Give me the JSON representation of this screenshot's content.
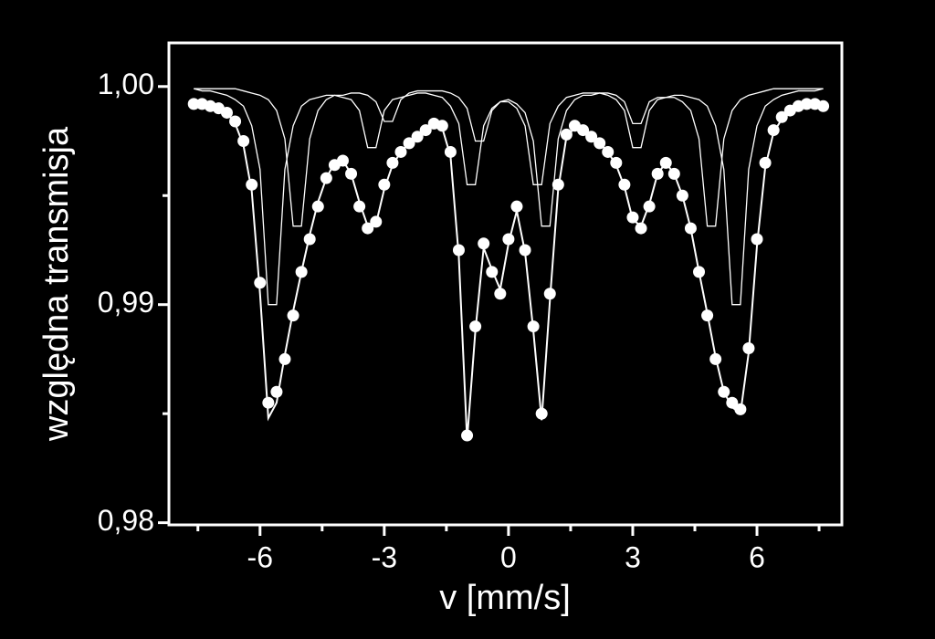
{
  "chart_data": {
    "type": "scatter",
    "xlabel": "v [mm/s]",
    "ylabel": "względna transmisja",
    "xlim": [
      -8.2,
      8.05
    ],
    "ylim": [
      0.9799,
      1.002
    ],
    "xticks": [
      -6,
      -3,
      0,
      3,
      6
    ],
    "xticks_minor": [
      -7.5,
      -4.5,
      -1.5,
      1.5,
      4.5,
      7.5
    ],
    "yticks": [
      {
        "value": 0.98,
        "label": "0,98"
      },
      {
        "value": 0.99,
        "label": "0,99"
      },
      {
        "value": 1.0,
        "label": "1,00"
      }
    ],
    "yticks_minor": [
      0.985,
      0.995
    ],
    "background": "#000000",
    "x": [
      -7.6,
      -7.4,
      -7.2,
      -7.0,
      -6.8,
      -6.6,
      -6.4,
      -6.2,
      -6.0,
      -5.8,
      -5.6,
      -5.4,
      -5.2,
      -5.0,
      -4.8,
      -4.6,
      -4.4,
      -4.2,
      -4.0,
      -3.8,
      -3.6,
      -3.4,
      -3.2,
      -3.0,
      -2.8,
      -2.6,
      -2.4,
      -2.2,
      -2.0,
      -1.8,
      -1.6,
      -1.4,
      -1.2,
      -1.0,
      -0.8,
      -0.6,
      -0.4,
      -0.2,
      0.0,
      0.2,
      0.4,
      0.6,
      0.8,
      1.0,
      1.2,
      1.4,
      1.6,
      1.8,
      2.0,
      2.2,
      2.4,
      2.6,
      2.8,
      3.0,
      3.2,
      3.4,
      3.6,
      3.8,
      4.0,
      4.2,
      4.4,
      4.6,
      4.8,
      5.0,
      5.2,
      5.4,
      5.6,
      5.8,
      6.0,
      6.2,
      6.4,
      6.6,
      6.8,
      7.0,
      7.2,
      7.4,
      7.6
    ],
    "series": [
      {
        "style": "markers",
        "color": "#ffffff",
        "values": [
          0.9992,
          0.9992,
          0.9991,
          0.999,
          0.9988,
          0.9984,
          0.9975,
          0.9955,
          0.991,
          0.9855,
          0.986,
          0.9875,
          0.9895,
          0.9915,
          0.993,
          0.9945,
          0.9958,
          0.9964,
          0.9966,
          0.996,
          0.9945,
          0.9935,
          0.9938,
          0.9955,
          0.9965,
          0.997,
          0.9974,
          0.9977,
          0.998,
          0.9983,
          0.9982,
          0.997,
          0.9925,
          0.984,
          0.989,
          0.9928,
          0.9915,
          0.9905,
          0.993,
          0.9945,
          0.9925,
          0.989,
          0.985,
          0.9905,
          0.9955,
          0.9978,
          0.9982,
          0.998,
          0.9977,
          0.9974,
          0.997,
          0.9965,
          0.9955,
          0.994,
          0.9935,
          0.9945,
          0.996,
          0.9965,
          0.996,
          0.995,
          0.9935,
          0.9915,
          0.9895,
          0.9875,
          0.986,
          0.9855,
          0.9852,
          0.988,
          0.993,
          0.9965,
          0.998,
          0.9986,
          0.9989,
          0.9991,
          0.9992,
          0.9992,
          0.9991
        ]
      },
      {
        "style": "line",
        "color": "#ffffff",
        "values": [
          0.9992,
          0.9992,
          0.9991,
          0.999,
          0.9988,
          0.9983,
          0.9973,
          0.9952,
          0.9905,
          0.9848,
          0.9855,
          0.9877,
          0.9897,
          0.9915,
          0.9932,
          0.9947,
          0.9958,
          0.9965,
          0.9966,
          0.996,
          0.9947,
          0.9936,
          0.9937,
          0.9953,
          0.9964,
          0.997,
          0.9974,
          0.9977,
          0.998,
          0.9982,
          0.9981,
          0.9968,
          0.9922,
          0.9838,
          0.9888,
          0.9926,
          0.9916,
          0.9907,
          0.9928,
          0.9943,
          0.9924,
          0.9888,
          0.9847,
          0.9902,
          0.9953,
          0.9977,
          0.9981,
          0.998,
          0.9977,
          0.9974,
          0.997,
          0.9964,
          0.9954,
          0.9939,
          0.9936,
          0.9946,
          0.996,
          0.9965,
          0.996,
          0.995,
          0.9935,
          0.9915,
          0.9896,
          0.9876,
          0.986,
          0.9853,
          0.985,
          0.9878,
          0.9927,
          0.9963,
          0.9979,
          0.9985,
          0.9989,
          0.9991,
          0.9992,
          0.9992,
          0.9991
        ]
      },
      {
        "style": "line",
        "color": "#ffffff",
        "values": [
          0.9999,
          0.9998,
          0.9998,
          0.9997,
          0.9996,
          0.9994,
          0.9991,
          0.9982,
          0.9962,
          0.99,
          0.99,
          0.9962,
          0.9982,
          0.9991,
          0.9994,
          0.9995,
          0.9996,
          0.9996,
          0.9995,
          0.9994,
          0.9989,
          0.9972,
          0.9972,
          0.9989,
          0.9994,
          0.9995,
          0.9996,
          0.9997,
          0.9997,
          0.9996,
          0.9995,
          0.9991,
          0.9983,
          0.9955,
          0.9955,
          0.9982,
          0.999,
          0.9993,
          0.9993,
          0.999,
          0.9982,
          0.9955,
          0.9955,
          0.9983,
          0.9991,
          0.9995,
          0.9996,
          0.9997,
          0.9997,
          0.9997,
          0.9996,
          0.9994,
          0.9989,
          0.9972,
          0.9972,
          0.9989,
          0.9994,
          0.9995,
          0.9996,
          0.9996,
          0.9995,
          0.9994,
          0.9991,
          0.9982,
          0.9962,
          0.99,
          0.99,
          0.9962,
          0.9982,
          0.9991,
          0.9994,
          0.9996,
          0.9997,
          0.9998,
          0.9998,
          0.9998,
          0.9999
        ]
      },
      {
        "style": "line",
        "color": "#ffffff",
        "values": [
          0.9999,
          0.9999,
          0.9999,
          0.9999,
          0.9999,
          0.9999,
          0.9998,
          0.9997,
          0.9996,
          0.9994,
          0.9989,
          0.9976,
          0.9936,
          0.9936,
          0.9976,
          0.9989,
          0.9994,
          0.9996,
          0.9996,
          0.9997,
          0.9997,
          0.9996,
          0.9993,
          0.9984,
          0.9984,
          0.9994,
          0.9997,
          0.9998,
          0.9998,
          0.9998,
          0.9998,
          0.9997,
          0.9995,
          0.999,
          0.9975,
          0.9975,
          0.9989,
          0.9993,
          0.9994,
          0.9992,
          0.9988,
          0.9975,
          0.9936,
          0.9936,
          0.9976,
          0.9989,
          0.9994,
          0.9996,
          0.9996,
          0.9997,
          0.9997,
          0.9996,
          0.9993,
          0.9983,
          0.9983,
          0.9993,
          0.9995,
          0.9995,
          0.9995,
          0.9993,
          0.9989,
          0.9976,
          0.9936,
          0.9936,
          0.9976,
          0.9989,
          0.9994,
          0.9996,
          0.9997,
          0.9998,
          0.9999,
          0.9999,
          0.9999,
          0.9999,
          0.9999,
          0.9999,
          0.9999
        ]
      }
    ]
  }
}
